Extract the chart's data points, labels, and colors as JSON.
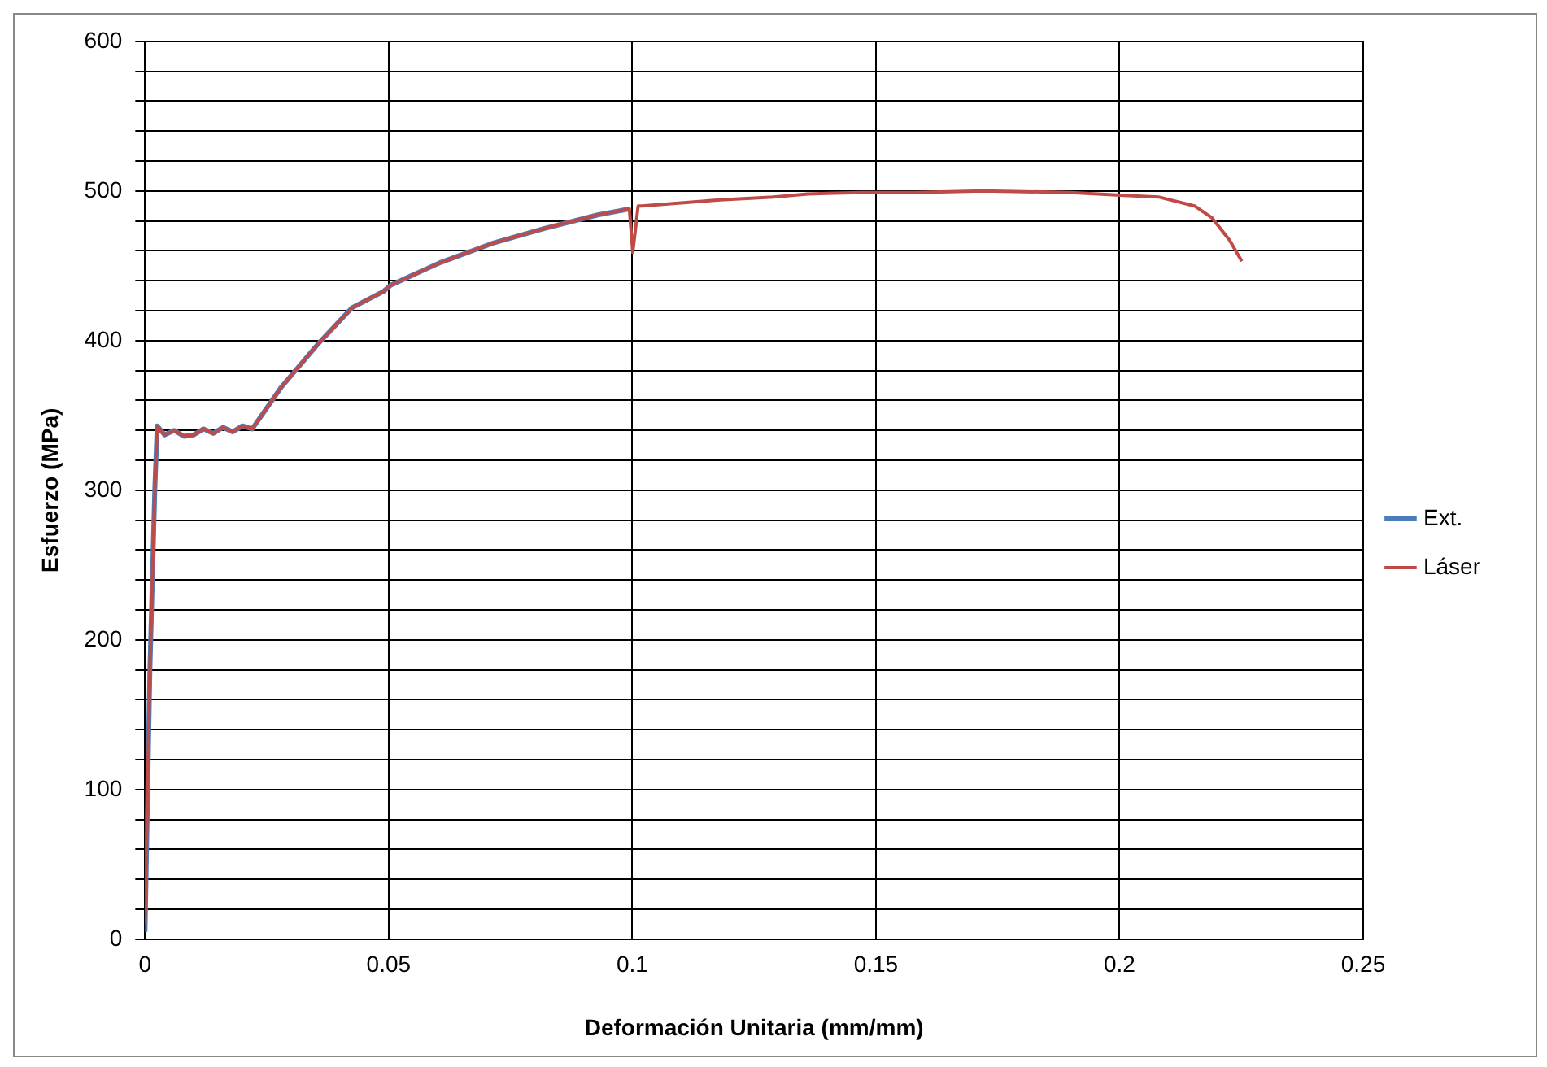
{
  "chart_data": {
    "type": "line",
    "xlabel": "Deformación Unitaria (mm/mm)",
    "ylabel": "Esfuerzo (MPa)",
    "xlim": [
      0,
      0.25
    ],
    "xticks": [
      0,
      0.05,
      0.1,
      0.15,
      0.2,
      0.25
    ],
    "ylim": [
      0,
      600
    ],
    "yticks": [
      0,
      {
        "value": 20,
        "label": null
      },
      {
        "value": 40,
        "label": null
      },
      {
        "value": 60,
        "label": null
      },
      {
        "value": 80,
        "label": null
      },
      100,
      {
        "value": 120,
        "label": null
      },
      {
        "value": 140,
        "label": null
      },
      {
        "value": 160,
        "label": null
      },
      {
        "value": 180,
        "label": null
      },
      200,
      {
        "value": 220,
        "label": null
      },
      {
        "value": 240,
        "label": null
      },
      {
        "value": 260,
        "label": null
      },
      {
        "value": 280,
        "label": null
      },
      300,
      {
        "value": 320,
        "label": null
      },
      {
        "value": 340,
        "label": null
      },
      {
        "value": 360,
        "label": null
      },
      {
        "value": 380,
        "label": null
      },
      400,
      {
        "value": 420,
        "label": null
      },
      {
        "value": 440,
        "label": null
      },
      {
        "value": 460,
        "label": null
      },
      {
        "value": 480,
        "label": null
      },
      500,
      {
        "value": 520,
        "label": null
      },
      {
        "value": 540,
        "label": null
      },
      {
        "value": 560,
        "label": null
      },
      {
        "value": 580,
        "label": null
      },
      600
    ],
    "grid": true,
    "legend": "right",
    "marker": "none",
    "line_style": "solid",
    "series": [
      {
        "name": "Ext.",
        "color": "#4a7ebb",
        "x": [
          0,
          0.001,
          0.002,
          0.0025,
          0.004,
          0.006,
          0.008,
          0.01,
          0.012,
          0.014,
          0.016,
          0.018,
          0.02,
          0.022,
          0.028,
          0.0353,
          0.0425,
          0.049,
          0.0504,
          0.0605,
          0.0713,
          0.082,
          0.0929,
          0.0994
        ],
        "values": [
          5,
          180,
          300,
          343,
          337,
          340,
          336,
          337,
          341,
          338,
          342,
          339,
          343,
          341,
          369,
          397,
          422,
          433,
          437,
          452,
          465,
          475,
          484,
          488
        ]
      },
      {
        "name": "Láser",
        "color": "#be4b48",
        "x": [
          0,
          0.001,
          0.002,
          0.0025,
          0.004,
          0.006,
          0.008,
          0.01,
          0.012,
          0.014,
          0.016,
          0.018,
          0.02,
          0.022,
          0.028,
          0.0353,
          0.0425,
          0.049,
          0.0504,
          0.0605,
          0.0713,
          0.082,
          0.0929,
          0.0994,
          0.1001,
          0.1012,
          0.102,
          0.118,
          0.129,
          0.136,
          0.147,
          0.158,
          0.172,
          0.19,
          0.201,
          0.208,
          0.2154,
          0.219,
          0.2226,
          0.2251
        ],
        "values": [
          10,
          180,
          300,
          343,
          337,
          340,
          336,
          337,
          341,
          338,
          342,
          339,
          343,
          341,
          369,
          397,
          422,
          433,
          437,
          452,
          465,
          475,
          484,
          488,
          459,
          490,
          490,
          494,
          496,
          498,
          499,
          499,
          500,
          499,
          497,
          496,
          490,
          482,
          467,
          453
        ]
      }
    ]
  }
}
